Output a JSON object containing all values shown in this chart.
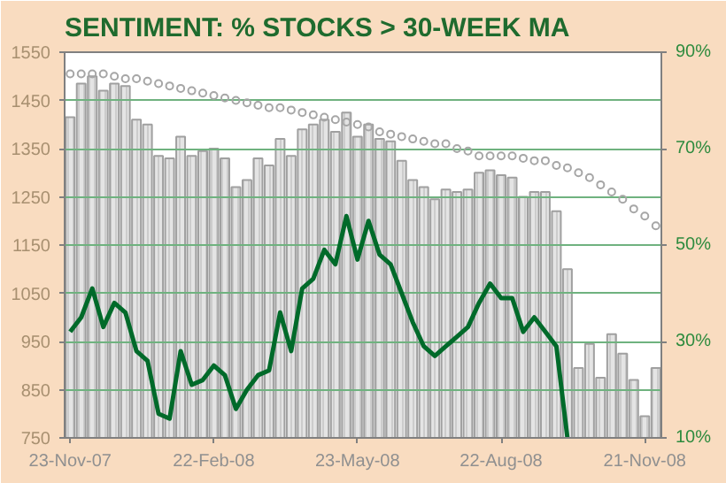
{
  "chart_data": {
    "type": "bar",
    "title": "SENTIMENT: % STOCKS > 30-WEEK MA",
    "categories": [
      "23-Nov-07",
      null,
      null,
      null,
      null,
      null,
      null,
      null,
      null,
      null,
      null,
      null,
      null,
      "22-Feb-08",
      null,
      null,
      null,
      null,
      null,
      null,
      null,
      null,
      null,
      null,
      null,
      null,
      "23-May-08",
      null,
      null,
      null,
      null,
      null,
      null,
      null,
      null,
      null,
      null,
      null,
      null,
      "22-Aug-08",
      null,
      null,
      null,
      null,
      null,
      null,
      null,
      null,
      null,
      null,
      null,
      null,
      "21-Nov-08",
      null
    ],
    "series": [
      {
        "color": "#e4e4e4",
        "values": [
          1415,
          1485,
          1500,
          1470,
          1485,
          1480,
          1410,
          1400,
          1335,
          1330,
          1375,
          1335,
          1345,
          1350,
          1330,
          1270,
          1285,
          1330,
          1315,
          1370,
          1335,
          1390,
          1400,
          1410,
          1385,
          1425,
          1375,
          1400,
          1370,
          1365,
          1325,
          1285,
          1270,
          1245,
          1265,
          1260,
          1265,
          1300,
          1305,
          1295,
          1290,
          1250,
          1260,
          1260,
          1220,
          1100,
          895,
          945,
          875,
          965,
          925,
          870,
          795,
          895
        ]
      },
      {
        "type": "line",
        "axis": "y2",
        "color": "#006a2a",
        "values": [
          32,
          35,
          41,
          33,
          38,
          36,
          28,
          26,
          15,
          14,
          28,
          21,
          22,
          25,
          23,
          16,
          20,
          23,
          24,
          36,
          28,
          41,
          43,
          49,
          46,
          56,
          47,
          55,
          48,
          46,
          40,
          34,
          29,
          27,
          29,
          31,
          33,
          38,
          42,
          39,
          39,
          32,
          35,
          32,
          29,
          10,
          null,
          null,
          null,
          null,
          null,
          null,
          null,
          null
        ]
      },
      {
        "type": "scatter",
        "marker": "circle",
        "color": "#a6a6a6",
        "values": [
          1505,
          1505,
          1505,
          1505,
          1500,
          1495,
          1495,
          1490,
          1485,
          1480,
          1475,
          1470,
          1465,
          1460,
          1455,
          1450,
          1445,
          1440,
          1435,
          1435,
          1430,
          1425,
          1420,
          1415,
          1410,
          1405,
          1400,
          1395,
          1385,
          1380,
          1375,
          1370,
          1365,
          1360,
          1360,
          1350,
          1345,
          1335,
          1335,
          1335,
          1335,
          1330,
          1325,
          1325,
          1315,
          1310,
          1300,
          1290,
          1275,
          1260,
          1245,
          1225,
          1210,
          1190
        ]
      }
    ],
    "ylim": [
      750,
      1550
    ],
    "yticks": [
      750,
      850,
      950,
      1050,
      1150,
      1250,
      1350,
      1450,
      1550
    ],
    "y2lim": [
      10,
      90
    ],
    "y2ticks": [
      {
        "value": 10,
        "label": "10%"
      },
      {
        "value": 30,
        "label": "30%"
      },
      {
        "value": 50,
        "label": "50%"
      },
      {
        "value": 70,
        "label": "70%"
      },
      {
        "value": 90,
        "label": "90%"
      }
    ],
    "grid": "y"
  }
}
